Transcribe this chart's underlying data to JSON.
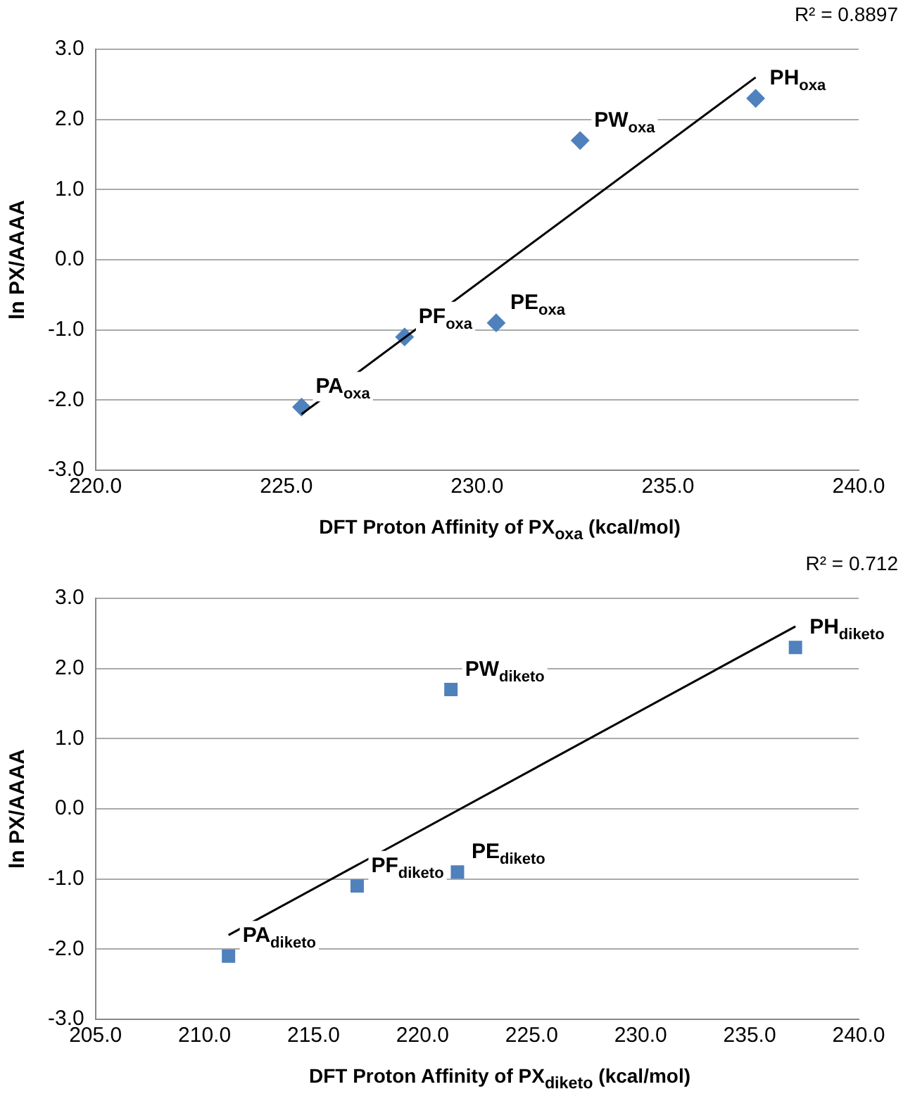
{
  "chart_data": [
    {
      "type": "scatter",
      "xlabel": "DFT Proton Affinity of PX$_{oxa}$ (kcal/mol)",
      "ylabel": "ln PX/AAAA",
      "xlim": [
        220,
        240
      ],
      "xticks": [
        {
          "value": 220,
          "label": "220.0"
        },
        {
          "value": 225,
          "label": "225.0"
        },
        {
          "value": 230,
          "label": "230.0"
        },
        {
          "value": 235,
          "label": "235.0"
        },
        {
          "value": 240,
          "label": "240.0"
        }
      ],
      "ylim": [
        -3,
        3
      ],
      "yticks": [
        {
          "value": -3,
          "label": "-3.0"
        },
        {
          "value": -2,
          "label": "-2.0"
        },
        {
          "value": -1,
          "label": "-1.0"
        },
        {
          "value": 0,
          "label": "0.0"
        },
        {
          "value": 1,
          "label": "1.0"
        },
        {
          "value": 2,
          "label": "2.0"
        },
        {
          "value": 3,
          "label": "3.0"
        }
      ],
      "grid": "y",
      "legend": false,
      "series": [
        {
          "type": "scatter",
          "color": "#4f81bd",
          "marker": "diamond",
          "x": [
            225.4,
            228.1,
            230.5,
            232.7,
            237.3
          ],
          "values": [
            -2.1,
            -1.1,
            -0.9,
            1.7,
            2.3
          ]
        },
        {
          "type": "line",
          "color": "#000000",
          "marker": "none",
          "line_style": "solid",
          "x": [
            225.4,
            237.3
          ],
          "values": [
            -2.2,
            2.6
          ]
        }
      ],
      "annotations": [
        "R² = 0.8897",
        {
          "text": "PA$_{oxa}$",
          "x": 225.4,
          "y": -2.1
        },
        {
          "text": "PF$_{oxa}$",
          "x": 228.1,
          "y": -1.1
        },
        {
          "text": "PE$_{oxa}$",
          "x": 230.5,
          "y": -0.9
        },
        {
          "text": "PW$_{oxa}$",
          "x": 232.7,
          "y": 1.7
        },
        {
          "text": "PH$_{oxa}$",
          "x": 237.3,
          "y": 2.3
        }
      ]
    },
    {
      "type": "scatter",
      "xlabel": "DFT Proton Affinity of PX$_{diketo}$ (kcal/mol)",
      "ylabel": "ln PX/AAAA",
      "xlim": [
        205,
        240
      ],
      "xticks": [
        {
          "value": 205,
          "label": "205.0"
        },
        {
          "value": 210,
          "label": "210.0"
        },
        {
          "value": 215,
          "label": "215.0"
        },
        {
          "value": 220,
          "label": "220.0"
        },
        {
          "value": 225,
          "label": "225.0"
        },
        {
          "value": 230,
          "label": "230.0"
        },
        {
          "value": 235,
          "label": "235.0"
        },
        {
          "value": 240,
          "label": "240.0"
        }
      ],
      "ylim": [
        -3,
        3
      ],
      "yticks": [
        {
          "value": -3,
          "label": "-3.0"
        },
        {
          "value": -2,
          "label": "-2.0"
        },
        {
          "value": -1,
          "label": "-1.0"
        },
        {
          "value": 0,
          "label": "0.0"
        },
        {
          "value": 1,
          "label": "1.0"
        },
        {
          "value": 2,
          "label": "2.0"
        },
        {
          "value": 3,
          "label": "3.0"
        }
      ],
      "grid": "y",
      "legend": false,
      "series": [
        {
          "type": "scatter",
          "color": "#4f81bd",
          "marker": "square",
          "x": [
            211.1,
            217.0,
            221.6,
            221.3,
            237.1
          ],
          "values": [
            -2.1,
            -1.1,
            -0.9,
            1.7,
            2.3
          ]
        },
        {
          "type": "line",
          "color": "#000000",
          "marker": "none",
          "line_style": "solid",
          "x": [
            211.1,
            237.1
          ],
          "values": [
            -1.8,
            2.6
          ]
        }
      ],
      "annotations": [
        "R² = 0.712",
        {
          "text": "PA$_{diketo}$",
          "x": 211.1,
          "y": -2.1
        },
        {
          "text": "PF$_{diketo}$",
          "x": 217.0,
          "y": -1.1
        },
        {
          "text": "PE$_{diketo}$",
          "x": 221.6,
          "y": -0.9
        },
        {
          "text": "PW$_{diketo}$",
          "x": 221.3,
          "y": 1.7
        },
        {
          "text": "PH$_{diketo}$",
          "x": 237.1,
          "y": 2.3
        }
      ]
    }
  ]
}
